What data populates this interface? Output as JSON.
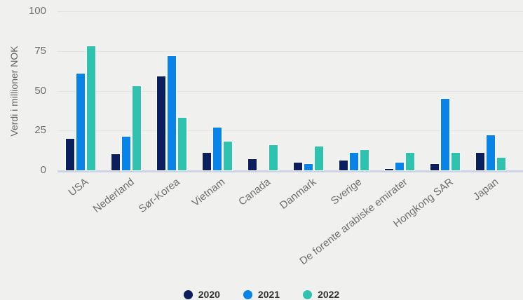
{
  "chart_data": {
    "type": "bar",
    "title": "",
    "xlabel": "",
    "ylabel": "Verdi i millioner NOK",
    "ylim": [
      0,
      100
    ],
    "yticks": [
      0,
      25,
      50,
      75,
      100
    ],
    "grid": true,
    "legend_position": "bottom",
    "categories": [
      "USA",
      "Nederland",
      "Sør-Korea",
      "Vietnam",
      "Canada",
      "Danmark",
      "Sverige",
      "De forente arabiske emirater",
      "Hongkong SAR",
      "Japan"
    ],
    "series": [
      {
        "name": "2020",
        "color": "#0b1e5e",
        "values": [
          20,
          10,
          59,
          11,
          7,
          5,
          6,
          1,
          4,
          11
        ]
      },
      {
        "name": "2021",
        "color": "#0884e8",
        "values": [
          61,
          21,
          72,
          27,
          null,
          4,
          11,
          5,
          45,
          22
        ]
      },
      {
        "name": "2022",
        "color": "#2fc2ae",
        "values": [
          78,
          53,
          33,
          18,
          16,
          15,
          13,
          11,
          11,
          8
        ]
      }
    ]
  },
  "colors": {
    "background": "#f0f1ef",
    "gridline": "#e3e5e2",
    "axis_line": "#cdd3e9",
    "tick_text": "#6f6f6f",
    "axis_title_text": "#666666",
    "xlabel_text": "#6f6f6f",
    "legend_text": "#333333"
  }
}
